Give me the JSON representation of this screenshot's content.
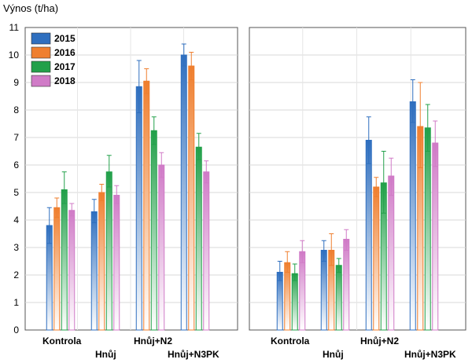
{
  "chart_data": {
    "type": "bar",
    "ylabel": "Výnos (t/ha)",
    "ylim": [
      0,
      11
    ],
    "yticks": [
      0,
      1,
      2,
      3,
      4,
      5,
      6,
      7,
      8,
      9,
      10,
      11
    ],
    "grid": true,
    "legend_position": "top-left",
    "categories": [
      "Kontrola",
      "Hnůj",
      "Hnůj+N2",
      "Hnůj+N3PK"
    ],
    "series_colors": {
      "2015": "#2f6fbf",
      "2016": "#ef7f2f",
      "2017": "#22a04a",
      "2018": "#d07bc7"
    },
    "legend": [
      "2015",
      "2016",
      "2017",
      "2018"
    ],
    "panels": [
      {
        "name": "left",
        "series": [
          {
            "name": "2015",
            "values": [
              3.8,
              4.3,
              8.85,
              10.0
            ],
            "err_low": [
              3.15,
              3.9,
              7.9,
              9.6
            ],
            "err_high": [
              4.45,
              4.75,
              9.8,
              10.4
            ]
          },
          {
            "name": "2016",
            "values": [
              4.45,
              5.0,
              9.05,
              9.6
            ],
            "err_low": [
              4.1,
              4.7,
              8.6,
              9.1
            ],
            "err_high": [
              4.8,
              5.3,
              9.5,
              10.1
            ]
          },
          {
            "name": "2017",
            "values": [
              5.1,
              5.75,
              7.25,
              6.65
            ],
            "err_low": [
              4.6,
              5.2,
              6.75,
              6.2
            ],
            "err_high": [
              5.75,
              6.35,
              7.75,
              7.15
            ]
          },
          {
            "name": "2018",
            "values": [
              4.35,
              4.9,
              6.0,
              5.75
            ],
            "err_low": [
              4.15,
              4.6,
              5.55,
              5.35
            ],
            "err_high": [
              4.6,
              5.25,
              6.45,
              6.15
            ]
          }
        ]
      },
      {
        "name": "right",
        "series": [
          {
            "name": "2015",
            "values": [
              2.1,
              2.9,
              6.9,
              8.3
            ],
            "err_low": [
              1.8,
              2.5,
              6.05,
              7.55
            ],
            "err_high": [
              2.5,
              3.25,
              7.75,
              9.1
            ]
          },
          {
            "name": "2016",
            "values": [
              2.45,
              2.9,
              5.2,
              7.4
            ],
            "err_low": [
              2.1,
              2.35,
              4.85,
              5.9
            ],
            "err_high": [
              2.85,
              3.5,
              5.55,
              9.0
            ]
          },
          {
            "name": "2017",
            "values": [
              2.05,
              2.35,
              5.35,
              7.35
            ],
            "err_low": [
              1.8,
              2.1,
              4.25,
              6.5
            ],
            "err_high": [
              2.4,
              2.6,
              6.5,
              8.2
            ]
          },
          {
            "name": "2018",
            "values": [
              2.85,
              3.3,
              5.6,
              6.8
            ],
            "err_low": [
              2.45,
              2.9,
              4.9,
              5.95
            ],
            "err_high": [
              3.25,
              3.65,
              6.25,
              7.6
            ]
          }
        ]
      }
    ]
  }
}
